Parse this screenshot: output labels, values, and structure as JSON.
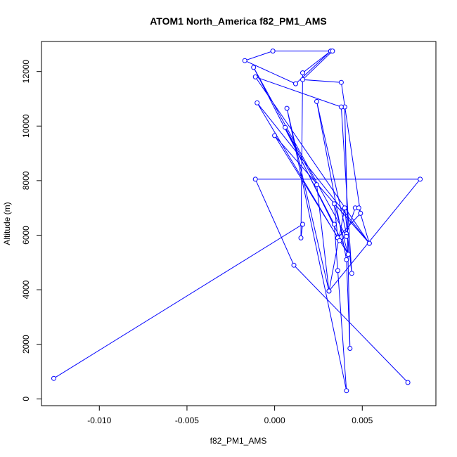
{
  "chart_data": {
    "type": "line",
    "title": "ATOM1 North_America f82_PM1_AMS",
    "xlabel": "f82_PM1_AMS",
    "ylabel": "Altitude (m)",
    "xlim": [
      -0.0133,
      0.0092
    ],
    "ylim": [
      -250,
      13100
    ],
    "xticks": [
      -0.01,
      -0.005,
      0.0,
      0.005
    ],
    "xtick_labels": [
      "-0.010",
      "-0.005",
      "0.000",
      "0.005"
    ],
    "yticks": [
      0,
      2000,
      4000,
      6000,
      8000,
      10000,
      12000
    ],
    "ytick_labels": [
      "0",
      "2000",
      "4000",
      "6000",
      "8000",
      "10000",
      "12000"
    ],
    "series_color": "#0000ff",
    "marker": "open-circle",
    "grid": false,
    "legend": "none",
    "series": [
      {
        "x": [
          -0.0126,
          0.0016,
          0.0015,
          0.0016,
          0.0032,
          0.0012,
          -0.0017,
          -0.0001,
          0.0033,
          0.0016,
          0.0038,
          0.0049,
          0.0036,
          0.0034,
          0.0042,
          0.004,
          0.0043,
          0.0041,
          0.0024,
          0.0041,
          0.0046,
          0.0048,
          0.0054,
          -0.0011,
          0.0038,
          0.0044,
          0.004,
          0.0031,
          0.0007,
          0.0041,
          0.0036,
          0.0034,
          -0.0012,
          0.0041,
          0.0037,
          -0.001,
          0.0054,
          0.0,
          0.0042,
          0.0006,
          0.0024,
          0.0031,
          0.0083,
          -0.0011,
          0.0011,
          0.0076
        ],
        "y": [
          750,
          6400,
          5900,
          11950,
          12750,
          11550,
          12400,
          12750,
          12750,
          11700,
          11600,
          6800,
          5900,
          7150,
          5300,
          10700,
          1850,
          5100,
          10900,
          6050,
          7000,
          7000,
          5700,
          11800,
          10700,
          4600,
          7000,
          3950,
          10650,
          300,
          4700,
          6400,
          12150,
          5950,
          5800,
          10850,
          5700,
          9650,
          5300,
          9950,
          7850,
          3950,
          8050,
          8050,
          4900,
          600
        ]
      }
    ]
  }
}
